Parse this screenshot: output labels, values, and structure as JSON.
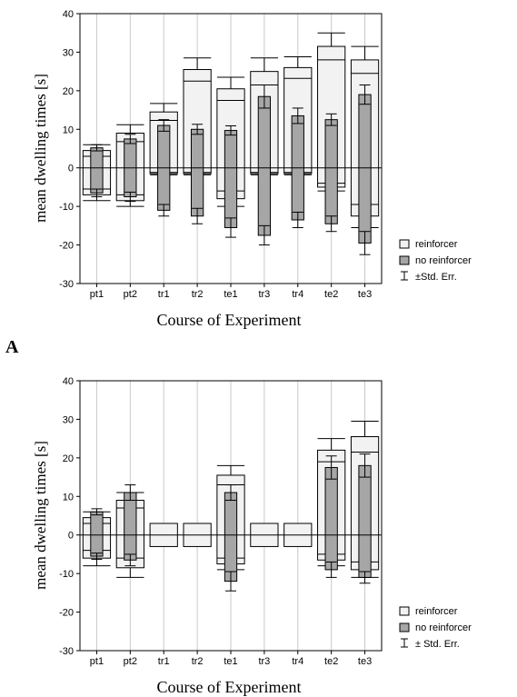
{
  "chart_data": [
    {
      "type": "bar",
      "categories": [
        "pt1",
        "pt2",
        "tr1",
        "tr2",
        "te1",
        "tr3",
        "tr4",
        "te2",
        "te3"
      ],
      "xlabel": "Course of Experiment",
      "ylabel": "mean dwelling times [s]",
      "ylim": [
        -30,
        40
      ],
      "yticks": [
        -30,
        -20,
        -10,
        0,
        10,
        20,
        30,
        40
      ],
      "grid": "vertical",
      "legend_position": "bottom-right",
      "legend": [
        "reinforcer",
        "no reinforcer",
        "±Std. Err."
      ],
      "colors": {
        "reinforcer": "#f2f2f2",
        "no_reinforcer": "#a6a6a6",
        "stroke": "#000000"
      },
      "series": [
        {
          "name": "reinforcer",
          "pos": [
            4.5,
            9,
            14.5,
            25.5,
            20.5,
            25,
            26,
            31.5,
            28
          ],
          "pos_err": [
            1.5,
            2.2,
            2.2,
            3,
            3,
            3.5,
            2.8,
            3.5,
            3.5
          ],
          "neg": [
            -7,
            -8.5,
            -1.5,
            -1.5,
            -8,
            -1.5,
            -1.5,
            -5,
            -12.5
          ],
          "neg_err": [
            1.5,
            1.5,
            0.3,
            0.3,
            2,
            0.3,
            0.3,
            1,
            3
          ]
        },
        {
          "name": "no reinforcer",
          "pos": [
            5.2,
            7.5,
            11,
            10,
            9.7,
            18.5,
            13.5,
            12.5,
            19
          ],
          "pos_err": [
            0.8,
            1.2,
            1.5,
            1.3,
            1.2,
            3,
            2,
            1.5,
            2.5
          ],
          "neg": [
            -6.5,
            -7.5,
            -11,
            -12.5,
            -15.5,
            -17.5,
            -13.5,
            -14.5,
            -19.5
          ],
          "neg_err": [
            1,
            1.2,
            1.5,
            2,
            2.5,
            2.5,
            2,
            2,
            3
          ]
        }
      ]
    },
    {
      "type": "bar",
      "categories": [
        "pt1",
        "pt2",
        "tr1",
        "tr2",
        "te1",
        "tr3",
        "tr4",
        "te2",
        "te3"
      ],
      "xlabel": "Course of Experiment",
      "ylabel": "mean dwelling times [s]",
      "ylim": [
        -30,
        40
      ],
      "yticks": [
        -30,
        -20,
        -10,
        0,
        10,
        20,
        30,
        40
      ],
      "grid": "vertical",
      "legend_position": "bottom-right",
      "legend": [
        "reinforcer",
        "no reinforcer",
        "± Std. Err."
      ],
      "colors": {
        "reinforcer": "#f2f2f2",
        "no_reinforcer": "#a6a6a6",
        "stroke": "#000000"
      },
      "series": [
        {
          "name": "reinforcer",
          "pos": [
            4.5,
            9,
            3,
            3,
            15.5,
            3,
            3,
            22,
            25.5
          ],
          "pos_err": [
            1.5,
            2,
            0,
            0,
            2.5,
            0,
            0,
            3,
            4
          ],
          "neg": [
            -6,
            -8.5,
            -3,
            -3,
            -7.5,
            -3,
            -3,
            -6.5,
            -9
          ],
          "neg_err": [
            2,
            2.5,
            0,
            0,
            1.5,
            0,
            0,
            1.5,
            2
          ]
        },
        {
          "name": "no reinforcer",
          "pos": [
            6,
            11,
            0,
            0,
            11,
            0,
            0,
            17.5,
            18
          ],
          "pos_err": [
            0.8,
            2,
            0,
            0,
            2,
            0,
            0,
            3,
            3
          ],
          "neg": [
            -5.5,
            -6.5,
            0,
            0,
            -12,
            0,
            0,
            -9,
            -11
          ],
          "neg_err": [
            0.8,
            1.5,
            0,
            0,
            2.5,
            0,
            0,
            2,
            1.5
          ]
        }
      ]
    }
  ],
  "panel_label": "A"
}
